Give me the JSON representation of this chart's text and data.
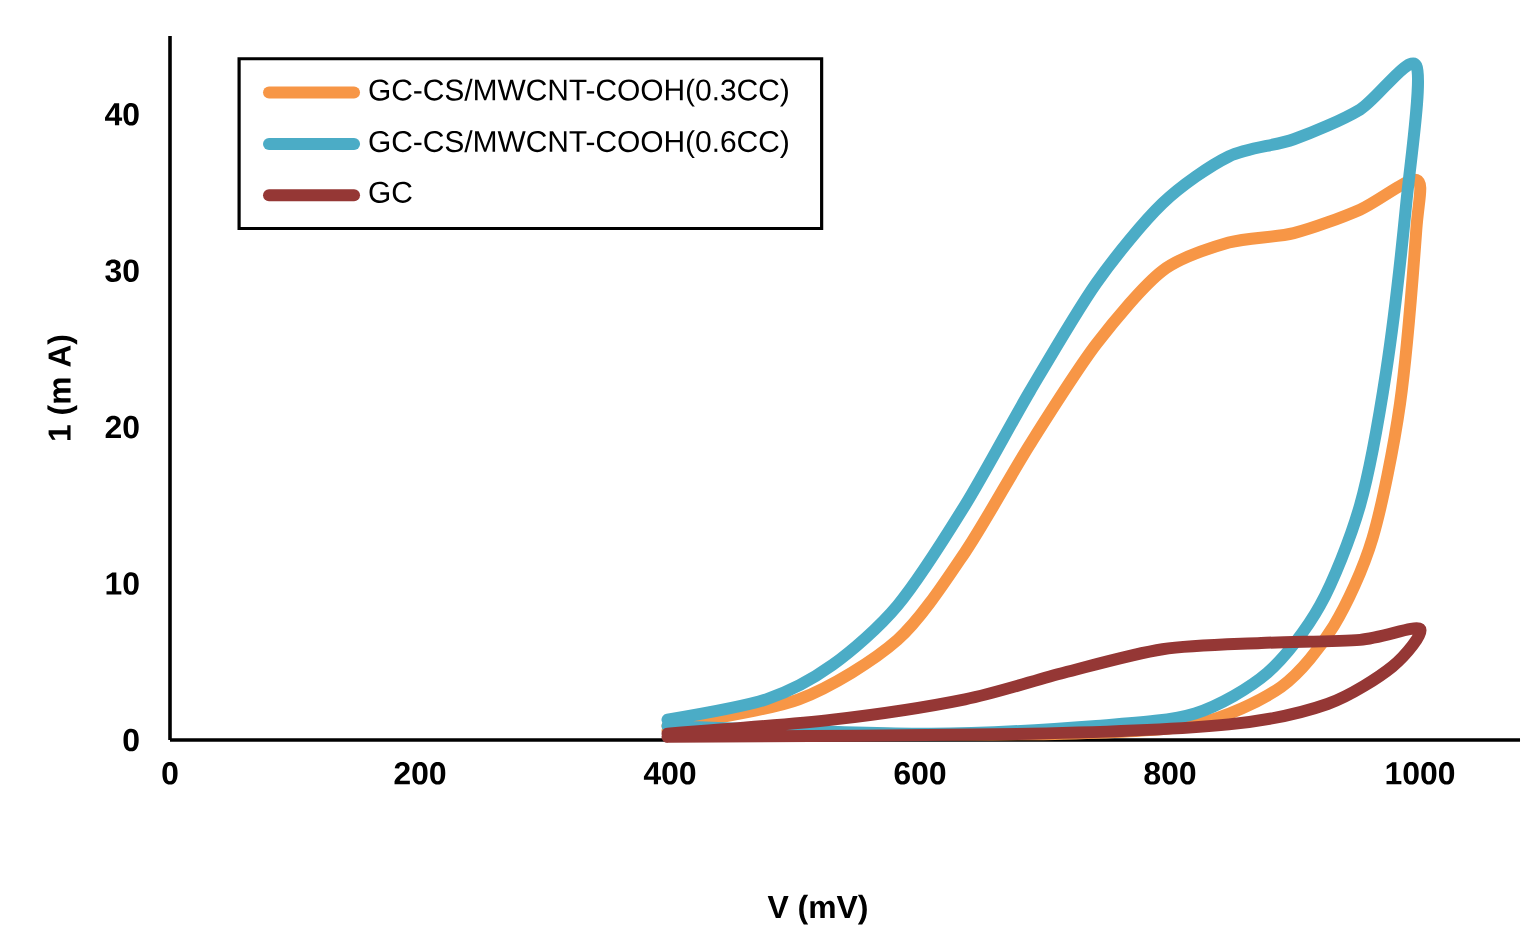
{
  "chart_data": {
    "type": "line",
    "xlabel": "V (mV)",
    "ylabel": "1 (m A)",
    "xlim": [
      0,
      1080
    ],
    "ylim": [
      0,
      45
    ],
    "xticks": [
      0,
      200,
      400,
      600,
      800,
      1000
    ],
    "yticks": [
      0,
      10,
      20,
      30,
      40
    ],
    "grid": false,
    "legend": "top left",
    "marker": "none",
    "line_style": "solid",
    "series": [
      {
        "name": "GC-CS/MWCNT-COOH(0.3CC)",
        "color": "#f79646",
        "x": [
          398,
          503,
          582,
          636,
          688,
          741,
          794,
          847,
          899,
          952,
          997,
          997,
          984,
          962,
          931,
          889,
          820,
          715,
          557,
          398
        ],
        "values": [
          0.9,
          2.6,
          6.4,
          12.0,
          18.9,
          25.3,
          30.0,
          31.8,
          32.4,
          33.9,
          35.8,
          32.6,
          21.5,
          12.9,
          7.3,
          3.4,
          1.0,
          0.4,
          0.4,
          0.6
        ]
      },
      {
        "name": "GC-CS/MWCNT-COOH(0.6CC)",
        "color": "#4bacc6",
        "x": [
          398,
          477,
          530,
          582,
          636,
          688,
          741,
          794,
          847,
          899,
          952,
          997,
          989,
          973,
          952,
          920,
          878,
          820,
          741,
          609,
          398
        ],
        "values": [
          1.3,
          2.6,
          4.8,
          8.6,
          15.0,
          22.3,
          29.2,
          34.3,
          37.3,
          38.4,
          40.3,
          43.1,
          34.3,
          23.6,
          15.0,
          8.6,
          4.3,
          1.7,
          0.9,
          0.4,
          0.9
        ]
      },
      {
        "name": "GC",
        "color": "#953735",
        "x": [
          398,
          530,
          636,
          715,
          794,
          873,
          952,
          1000,
          978,
          926,
          847,
          688,
          398
        ],
        "values": [
          0.4,
          1.3,
          2.6,
          4.3,
          5.8,
          6.2,
          6.4,
          7.1,
          4.7,
          2.3,
          1.0,
          0.4,
          0.2
        ]
      }
    ]
  }
}
